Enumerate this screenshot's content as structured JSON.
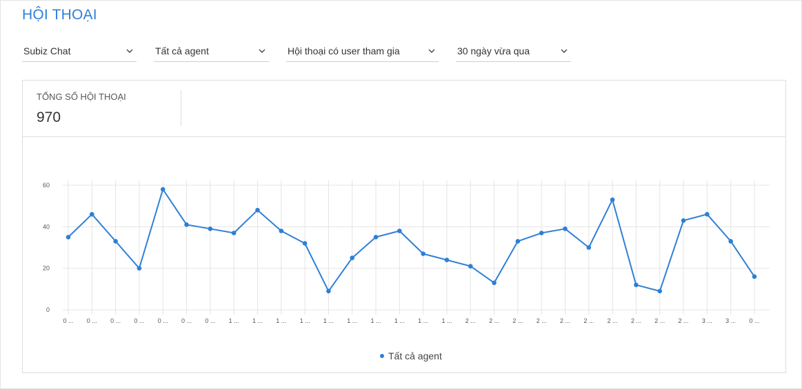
{
  "page": {
    "title": "HỘI THOẠI"
  },
  "filters": [
    {
      "id": "channel",
      "value": "Subiz Chat"
    },
    {
      "id": "agent",
      "value": "Tất cả agent"
    },
    {
      "id": "conversation-type",
      "value": "Hội thoại có user tham gia"
    },
    {
      "id": "range",
      "value": "30 ngày vừa qua"
    }
  ],
  "summary": {
    "label": "TỔNG SỐ HỘI THOẠI",
    "value": "970"
  },
  "icons": {
    "chevron": "chevron-down-icon"
  },
  "colors": {
    "accent": "#2e7fd6",
    "grid": "#e4e4e4"
  },
  "chart_data": {
    "type": "line",
    "x": [
      "0 ...",
      "0 ...",
      "0 ...",
      "0 ...",
      "0 ...",
      "0 ...",
      "0 ...",
      "1 ...",
      "1 ...",
      "1 ...",
      "1 ...",
      "1 ...",
      "1 ...",
      "1 ...",
      "1 ...",
      "1 ...",
      "1 ...",
      "2 ...",
      "2 ...",
      "2 ...",
      "2 ...",
      "2 ...",
      "2 ...",
      "2 ...",
      "2 ...",
      "2 ...",
      "2 ...",
      "3 ...",
      "3 ...",
      "0 ..."
    ],
    "series": [
      {
        "name": "Tất cả agent",
        "values": [
          35,
          46,
          33,
          20,
          58,
          41,
          39,
          37,
          48,
          38,
          32,
          9,
          25,
          35,
          38,
          27,
          24,
          21,
          13,
          33,
          37,
          39,
          30,
          53,
          12,
          9,
          43,
          46,
          33,
          16
        ]
      }
    ],
    "ylim": [
      0,
      60
    ],
    "yticks": [
      0,
      20,
      40,
      60
    ],
    "grid": true,
    "legend": "bottom-center"
  }
}
